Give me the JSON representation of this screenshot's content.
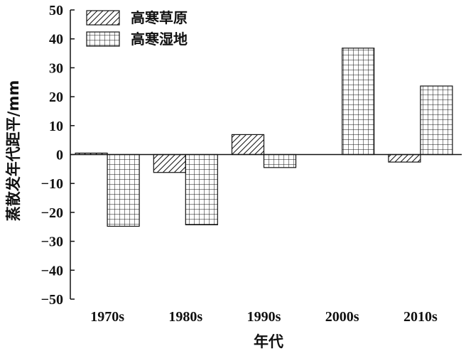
{
  "chart_data": {
    "type": "bar",
    "categories": [
      "1970s",
      "1980s",
      "1990s",
      "2000s",
      "2010s"
    ],
    "series": [
      {
        "name": "高寒草原",
        "values": [
          0.5,
          -6.2,
          6.9,
          0.0,
          -2.6
        ],
        "pattern": "diagonal"
      },
      {
        "name": "高寒湿地",
        "values": [
          -24.8,
          -24.3,
          -4.5,
          36.8,
          23.7
        ],
        "pattern": "grid"
      }
    ],
    "xlabel": "年代",
    "ylabel": "蒸散发年代距平/mm",
    "ylim": [
      -50,
      50
    ],
    "yticks": [
      50,
      40,
      30,
      20,
      10,
      0,
      -10,
      -20,
      -30,
      -40,
      -50
    ],
    "ytick_labels": [
      "50",
      "40",
      "30",
      "20",
      "10",
      "0",
      "−10",
      "−20",
      "−30",
      "−40",
      "−50"
    ],
    "legend_position": "top-left",
    "grid": false
  }
}
